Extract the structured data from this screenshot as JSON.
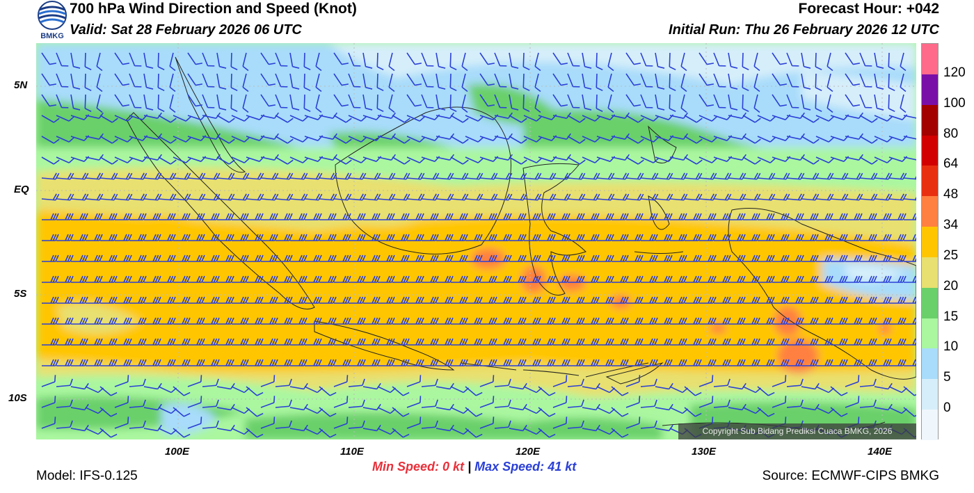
{
  "header": {
    "title": "700 hPa Wind Direction and Speed (Knot)",
    "valid": "Valid: Sat 28 February 2026 06 UTC",
    "forecast_hour": "Forecast Hour: +042",
    "initial_run": "Initial Run: Thu 26 February 2026 12 UTC",
    "logo_text": "BMKG"
  },
  "axes": {
    "lat_labels": [
      "5N",
      "EQ",
      "5S",
      "10S"
    ],
    "lon_labels": [
      "100E",
      "110E",
      "120E",
      "130E",
      "140E"
    ]
  },
  "colorbar": {
    "labels": [
      "120",
      "100",
      "80",
      "64",
      "48",
      "34",
      "25",
      "20",
      "15",
      "10",
      "5",
      "0"
    ],
    "colors": [
      "#ff6a8a",
      "#7a0fa8",
      "#a30000",
      "#d20000",
      "#e83010",
      "#ff8040",
      "#ffc600",
      "#e8e070",
      "#6ad06a",
      "#aaf7a0",
      "#a8dcfa",
      "#d6eefa",
      "#f0f7fc"
    ]
  },
  "stats": {
    "min_label": "Min Speed:",
    "min_value": "0 kt",
    "separator": "|",
    "max_label": "Max Speed:",
    "max_value": "41 kt"
  },
  "footer": {
    "model": "Model: IFS-0.125",
    "source": "Source: ECMWF-CIPS BMKG",
    "copyright": "Copyright Sub Bidang Prediksi Cuaca BMKG, 2026"
  },
  "colors": {
    "barb": "#2a3fd6",
    "min_speed": "#e8303a",
    "max_speed": "#2a3fd6"
  },
  "icons": {
    "logo": "bmkg-logo-icon",
    "barb": "wind-barb-icon"
  }
}
